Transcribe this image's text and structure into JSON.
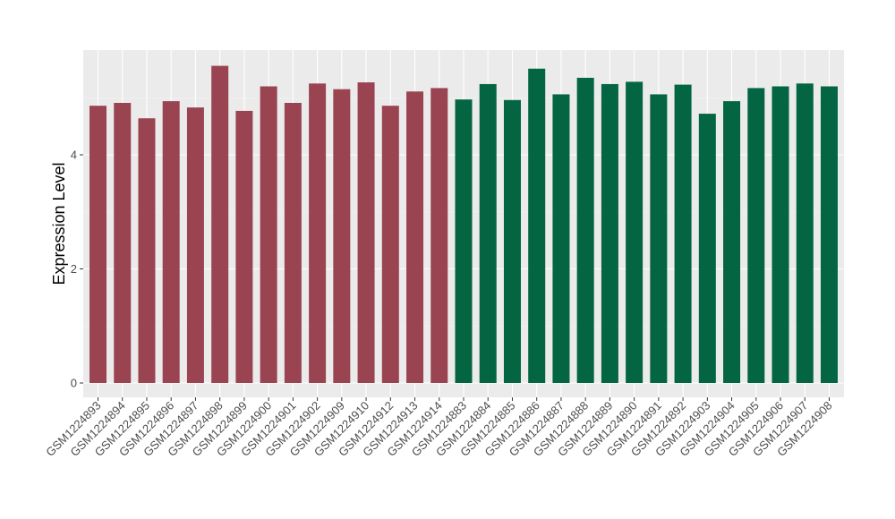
{
  "chart_data": {
    "type": "bar",
    "title": "",
    "xlabel": "",
    "ylabel": "Expression Level",
    "ylim": [
      -0.2,
      5.85
    ],
    "yticks": [
      0,
      2,
      4
    ],
    "grid": true,
    "background": "#ebebeb",
    "categories": [
      "GSM1224893",
      "GSM1224894",
      "GSM1224895",
      "GSM1224896",
      "GSM1224897",
      "GSM1224898",
      "GSM1224899",
      "GSM1224900",
      "GSM1224901",
      "GSM1224902",
      "GSM1224909",
      "GSM1224910",
      "GSM1224912",
      "GSM1224913",
      "GSM1224914",
      "GSM1224883",
      "GSM1224884",
      "GSM1224885",
      "GSM1224886",
      "GSM1224887",
      "GSM1224888",
      "GSM1224889",
      "GSM1224890",
      "GSM1224891",
      "GSM1224892",
      "GSM1224903",
      "GSM1224904",
      "GSM1224905",
      "GSM1224906",
      "GSM1224907",
      "GSM1224908"
    ],
    "values": [
      4.86,
      4.91,
      4.64,
      4.94,
      4.83,
      5.56,
      4.77,
      5.2,
      4.91,
      5.25,
      5.15,
      5.27,
      4.86,
      5.11,
      5.17,
      4.97,
      5.24,
      4.96,
      5.51,
      5.06,
      5.35,
      5.24,
      5.28,
      5.06,
      5.23,
      4.72,
      4.94,
      5.17,
      5.2,
      5.25,
      5.2
    ],
    "groups": [
      "a",
      "a",
      "a",
      "a",
      "a",
      "a",
      "a",
      "a",
      "a",
      "a",
      "a",
      "a",
      "a",
      "a",
      "a",
      "b",
      "b",
      "b",
      "b",
      "b",
      "b",
      "b",
      "b",
      "b",
      "b",
      "b",
      "b",
      "b",
      "b",
      "b",
      "b"
    ],
    "group_colors": {
      "a": "#9a4451",
      "b": "#036542"
    }
  }
}
